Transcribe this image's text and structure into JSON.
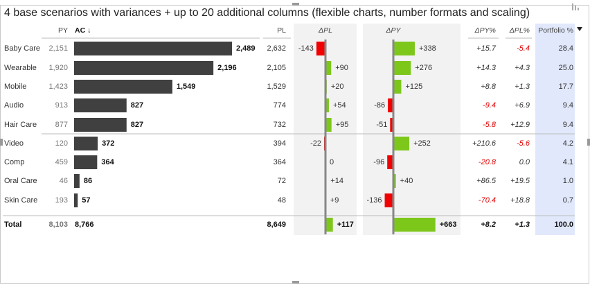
{
  "title": "4 base scenarios with variances + up to 20 additional columns (flexible charts, number formats and scaling)",
  "headers": {
    "py": "PY",
    "ac": "AC ↓",
    "pl": "PL",
    "dpl": "ΔPL",
    "dpy": "ΔPY",
    "dpy_pct": "ΔPY%",
    "dpl_pct": "ΔPL%",
    "portfolio": "Portfolio %"
  },
  "rows": [
    {
      "name": "Baby Care",
      "py": "2,151",
      "ac": {
        "value": 2489,
        "label": "2,489"
      },
      "pl": "2,632",
      "dpl": {
        "value": -143,
        "label": "-143"
      },
      "dpy": {
        "value": 338,
        "label": "+338"
      },
      "dpy_pct": "+15.7",
      "dpl_pct": "-5.4",
      "portfolio": "28.4"
    },
    {
      "name": "Wearable",
      "py": "1,920",
      "ac": {
        "value": 2196,
        "label": "2,196"
      },
      "pl": "2,105",
      "dpl": {
        "value": 90,
        "label": "+90"
      },
      "dpy": {
        "value": 276,
        "label": "+276"
      },
      "dpy_pct": "+14.3",
      "dpl_pct": "+4.3",
      "portfolio": "25.0"
    },
    {
      "name": "Mobile",
      "py": "1,423",
      "ac": {
        "value": 1549,
        "label": "1,549"
      },
      "pl": "1,529",
      "dpl": {
        "value": 20,
        "label": "+20"
      },
      "dpy": {
        "value": 125,
        "label": "+125"
      },
      "dpy_pct": "+8.8",
      "dpl_pct": "+1.3",
      "portfolio": "17.7"
    },
    {
      "name": "Audio",
      "py": "913",
      "ac": {
        "value": 827,
        "label": "827"
      },
      "pl": "774",
      "dpl": {
        "value": 54,
        "label": "+54"
      },
      "dpy": {
        "value": -86,
        "label": "-86"
      },
      "dpy_pct": "-9.4",
      "dpl_pct": "+6.9",
      "portfolio": "9.4"
    },
    {
      "name": "Hair Care",
      "py": "877",
      "ac": {
        "value": 827,
        "label": "827"
      },
      "pl": "732",
      "dpl": {
        "value": 95,
        "label": "+95"
      },
      "dpy": {
        "value": -51,
        "label": "-51"
      },
      "dpy_pct": "-5.8",
      "dpl_pct": "+12.9",
      "portfolio": "9.4"
    },
    {
      "name": "Video",
      "py": "120",
      "ac": {
        "value": 372,
        "label": "372"
      },
      "pl": "394",
      "dpl": {
        "value": -22,
        "label": "-22"
      },
      "dpy": {
        "value": 252,
        "label": "+252"
      },
      "dpy_pct": "+210.6",
      "dpl_pct": "-5.6",
      "portfolio": "4.2"
    },
    {
      "name": "Comp",
      "py": "459",
      "ac": {
        "value": 364,
        "label": "364"
      },
      "pl": "364",
      "dpl": {
        "value": 0,
        "label": "0"
      },
      "dpy": {
        "value": -96,
        "label": "-96"
      },
      "dpy_pct": "-20.8",
      "dpl_pct": "0.0",
      "portfolio": "4.1"
    },
    {
      "name": "Oral Care",
      "py": "46",
      "ac": {
        "value": 86,
        "label": "86"
      },
      "pl": "72",
      "dpl": {
        "value": 14,
        "label": "+14"
      },
      "dpy": {
        "value": 40,
        "label": "+40"
      },
      "dpy_pct": "+86.5",
      "dpl_pct": "+19.5",
      "portfolio": "1.0"
    },
    {
      "name": "Skin Care",
      "py": "193",
      "ac": {
        "value": 57,
        "label": "57"
      },
      "pl": "48",
      "dpl": {
        "value": 9,
        "label": "+9"
      },
      "dpy": {
        "value": -136,
        "label": "-136"
      },
      "dpy_pct": "-70.4",
      "dpl_pct": "+18.8",
      "portfolio": "0.7"
    }
  ],
  "total": {
    "name": "Total",
    "py": "8,103",
    "ac": "8,766",
    "pl": "8,649",
    "dpl": {
      "value": 117,
      "label": "+117"
    },
    "dpy": {
      "value": 663,
      "label": "+663"
    },
    "dpy_pct": "+8.2",
    "dpl_pct": "+1.3",
    "portfolio": "100.0"
  }
}
